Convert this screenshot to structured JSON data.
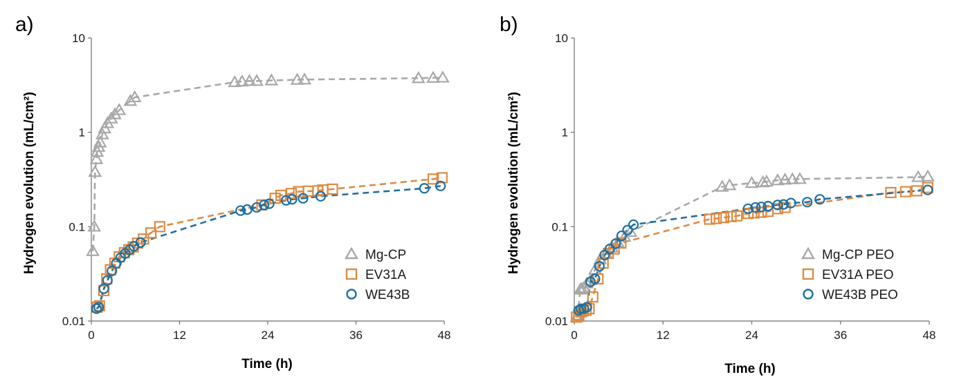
{
  "figure": {
    "panels": [
      "a)",
      "b)"
    ]
  },
  "chart_data": [
    {
      "type": "scatter",
      "panel_label": "a)",
      "xlabel": "Time (h)",
      "ylabel": "Hydrogen evolution (mL/cm²)",
      "xlim": [
        0,
        48
      ],
      "ylim": [
        0.01,
        10
      ],
      "yscale": "log",
      "xticks": [
        0,
        12,
        24,
        36,
        48
      ],
      "yticks": [
        {
          "value": 0.01,
          "label": "0.01"
        },
        {
          "value": 0.1,
          "label": "0.1"
        },
        {
          "value": 1,
          "label": "1"
        },
        {
          "value": 10,
          "label": "10"
        }
      ],
      "legend_position": "bottom-right",
      "series": [
        {
          "name": "Mg-CP",
          "marker": "triangle",
          "color": "#a8a8a8",
          "x": [
            0.2,
            0.4,
            0.5,
            0.7,
            0.8,
            1.0,
            1.2,
            1.5,
            1.8,
            2.2,
            2.7,
            3.2,
            3.8,
            5.3,
            5.9,
            19.5,
            20.5,
            21.5,
            22.5,
            24.5,
            28.0,
            29.0,
            44.5,
            46.5,
            47.8
          ],
          "y": [
            0.055,
            0.1,
            0.38,
            0.52,
            0.62,
            0.7,
            0.78,
            0.95,
            1.1,
            1.25,
            1.4,
            1.55,
            1.72,
            2.15,
            2.35,
            3.4,
            3.45,
            3.5,
            3.5,
            3.55,
            3.6,
            3.62,
            3.75,
            3.78,
            3.8
          ]
        },
        {
          "name": "EV31A",
          "marker": "square",
          "color": "#dd8a42",
          "x": [
            0.8,
            1.1,
            1.7,
            2.1,
            2.6,
            3.2,
            3.8,
            4.5,
            5.1,
            5.7,
            6.3,
            7.1,
            8.1,
            9.3,
            23.2,
            25.0,
            25.8,
            27.2,
            28.2,
            29.5,
            30.8,
            31.5,
            32.8,
            46.5,
            47.7
          ],
          "y": [
            0.014,
            0.0145,
            0.021,
            0.028,
            0.035,
            0.041,
            0.048,
            0.053,
            0.057,
            0.061,
            0.067,
            0.074,
            0.086,
            0.1,
            0.17,
            0.2,
            0.215,
            0.225,
            0.235,
            0.238,
            0.24,
            0.245,
            0.25,
            0.32,
            0.33
          ]
        },
        {
          "name": "WE43B",
          "marker": "circle",
          "color": "#1e6f9f",
          "x": [
            0.7,
            1.0,
            1.7,
            2.2,
            2.8,
            3.4,
            4.0,
            4.6,
            5.2,
            5.8,
            6.7,
            20.3,
            21.2,
            22.5,
            23.5,
            24.2,
            26.5,
            27.3,
            28.8,
            31.2,
            45.3,
            47.5
          ],
          "y": [
            0.0135,
            0.014,
            0.022,
            0.027,
            0.034,
            0.041,
            0.047,
            0.052,
            0.057,
            0.062,
            0.068,
            0.148,
            0.152,
            0.16,
            0.17,
            0.175,
            0.19,
            0.195,
            0.2,
            0.21,
            0.255,
            0.27
          ]
        }
      ]
    },
    {
      "type": "scatter",
      "panel_label": "b)",
      "xlabel": "Time (h)",
      "ylabel": "Hydrogen evolution (mL/cm²)",
      "xlim": [
        0,
        48
      ],
      "ylim": [
        0.01,
        10
      ],
      "yscale": "log",
      "xticks": [
        0,
        12,
        24,
        36,
        48
      ],
      "yticks": [
        {
          "value": 0.01,
          "label": "0.01"
        },
        {
          "value": 0.1,
          "label": "0.1"
        },
        {
          "value": 1,
          "label": "1"
        },
        {
          "value": 10,
          "label": "10"
        }
      ],
      "legend_position": "bottom-right",
      "series": [
        {
          "name": "Mg-CP PEO",
          "marker": "triangle",
          "color": "#a8a8a8",
          "x": [
            0.3,
            0.5,
            0.8,
            1.0,
            1.3,
            1.7,
            2.2,
            2.8,
            3.5,
            4.3,
            5.1,
            5.9,
            6.8,
            7.6,
            20.0,
            21.0,
            24.0,
            25.5,
            26.0,
            27.5,
            28.5,
            29.5,
            30.5,
            46.5,
            47.8
          ],
          "y": [
            0.011,
            0.0115,
            0.0215,
            0.022,
            0.0225,
            0.025,
            0.027,
            0.035,
            0.045,
            0.052,
            0.06,
            0.068,
            0.078,
            0.088,
            0.265,
            0.275,
            0.29,
            0.295,
            0.3,
            0.31,
            0.315,
            0.318,
            0.32,
            0.335,
            0.34
          ]
        },
        {
          "name": "EV31A PEO",
          "marker": "square",
          "color": "#dd8a42",
          "x": [
            0.3,
            0.6,
            0.9,
            1.2,
            1.6,
            2.0,
            2.5,
            3.2,
            3.9,
            4.6,
            5.4,
            6.3,
            18.3,
            19.2,
            20.2,
            21.2,
            22.0,
            23.5,
            24.3,
            25.3,
            26.2,
            27.5,
            28.5,
            42.8,
            44.8,
            46.3,
            47.8
          ],
          "y": [
            0.011,
            0.0115,
            0.0125,
            0.0128,
            0.013,
            0.0135,
            0.018,
            0.028,
            0.041,
            0.052,
            0.058,
            0.067,
            0.12,
            0.122,
            0.125,
            0.128,
            0.13,
            0.138,
            0.14,
            0.142,
            0.145,
            0.155,
            0.16,
            0.23,
            0.235,
            0.24,
            0.26
          ]
        },
        {
          "name": "WE43B PEO",
          "marker": "circle",
          "color": "#1e6f9f",
          "x": [
            0.6,
            0.9,
            1.3,
            1.7,
            2.2,
            2.8,
            3.4,
            4.1,
            4.8,
            5.6,
            6.4,
            7.2,
            8.0,
            23.5,
            24.5,
            25.3,
            26.2,
            27.5,
            28.3,
            29.3,
            31.5,
            33.2,
            47.8
          ],
          "y": [
            0.013,
            0.0135,
            0.0135,
            0.014,
            0.026,
            0.028,
            0.038,
            0.05,
            0.058,
            0.066,
            0.08,
            0.092,
            0.105,
            0.155,
            0.16,
            0.162,
            0.165,
            0.17,
            0.172,
            0.178,
            0.182,
            0.195,
            0.245
          ]
        }
      ]
    }
  ]
}
